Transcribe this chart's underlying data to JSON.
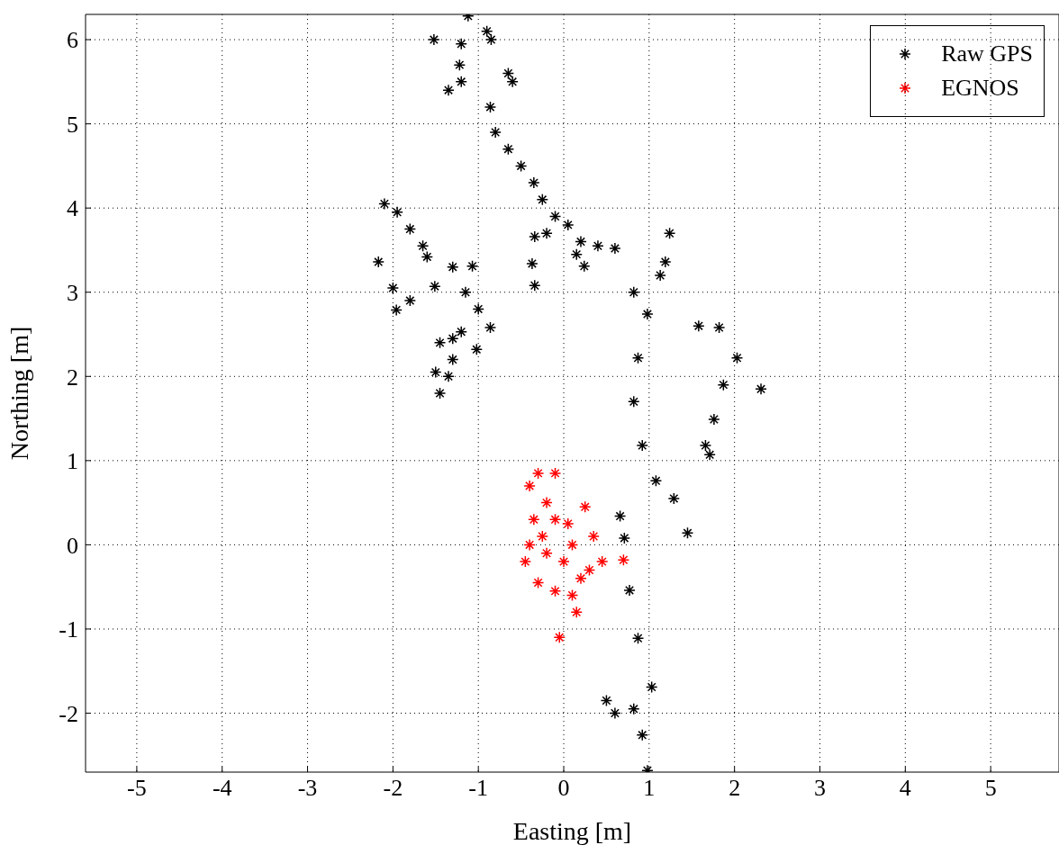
{
  "chart_data": {
    "type": "scatter",
    "xlabel": "Easting [m]",
    "ylabel": "Northing [m]",
    "xlim": [
      -5.6,
      5.8
    ],
    "ylim": [
      -2.7,
      6.3
    ],
    "xticks": [
      -5,
      -4,
      -3,
      -2,
      -1,
      0,
      1,
      2,
      3,
      4,
      5
    ],
    "yticks": [
      -2,
      -1,
      0,
      1,
      2,
      3,
      4,
      5,
      6
    ],
    "grid": true,
    "legend": "top right",
    "marker": "cross",
    "series": [
      {
        "name": "Raw GPS",
        "color": "#000000",
        "x": [
          -1.52,
          -1.12,
          -1.2,
          -1.22,
          -1.2,
          -1.35,
          -0.9,
          -0.85,
          -0.65,
          -0.6,
          -0.86,
          -0.8,
          -0.65,
          -0.5,
          -0.35,
          -0.25,
          -0.1,
          0.05,
          -0.34,
          -0.2,
          0.2,
          0.4,
          0.6,
          0.24,
          0.15,
          -2.1,
          -1.95,
          -1.8,
          -1.65,
          -1.6,
          -2.17,
          -2.0,
          -1.96,
          -1.8,
          -1.51,
          -1.3,
          -1.15,
          -1.0,
          -0.86,
          -1.07,
          -0.34,
          -0.37,
          -1.2,
          -1.02,
          -1.45,
          -1.3,
          -1.5,
          -1.35,
          -1.45,
          -1.3,
          1.24,
          1.19,
          1.13,
          0.82,
          0.98,
          0.87,
          0.82,
          0.92,
          1.08,
          1.29,
          1.45,
          0.66,
          0.71,
          0.77,
          0.87,
          1.03,
          0.82,
          0.92,
          0.98,
          0.5,
          0.6,
          1.58,
          1.82,
          2.03,
          2.31,
          1.87,
          1.76,
          1.66,
          1.71
        ],
        "values": [
          6.0,
          6.28,
          5.95,
          5.7,
          5.5,
          5.4,
          6.1,
          6.0,
          5.6,
          5.5,
          5.2,
          4.9,
          4.7,
          4.5,
          4.3,
          4.1,
          3.9,
          3.8,
          3.66,
          3.7,
          3.6,
          3.55,
          3.52,
          3.31,
          3.45,
          4.05,
          3.95,
          3.75,
          3.55,
          3.42,
          3.36,
          3.05,
          2.79,
          2.9,
          3.07,
          3.3,
          3.0,
          2.8,
          2.58,
          3.31,
          3.08,
          3.34,
          2.53,
          2.32,
          2.4,
          2.45,
          2.05,
          2.0,
          1.8,
          2.2,
          3.7,
          3.36,
          3.2,
          3.0,
          2.74,
          2.22,
          1.7,
          1.18,
          0.76,
          0.55,
          0.14,
          0.34,
          0.08,
          -0.54,
          -1.11,
          -1.69,
          -1.95,
          -2.26,
          -2.68,
          -1.85,
          -2.0,
          2.6,
          2.58,
          2.22,
          1.85,
          1.9,
          1.49,
          1.18,
          1.07
        ]
      },
      {
        "name": "EGNOS",
        "color": "#ff0000",
        "x": [
          -0.4,
          -0.3,
          -0.1,
          -0.2,
          -0.35,
          -0.1,
          -0.4,
          -0.45,
          -0.3,
          -0.1,
          0.1,
          0.15,
          0.3,
          0.45,
          0.7,
          0.35,
          0.25,
          0.1,
          0,
          -0.2,
          0.05,
          -0.05,
          0.2,
          -0.25
        ],
        "values": [
          0.7,
          0.85,
          0.85,
          0.5,
          0.3,
          0.3,
          0,
          -0.2,
          -0.45,
          -0.55,
          -0.6,
          -0.8,
          -0.3,
          -0.2,
          -0.18,
          0.1,
          0.45,
          0,
          -0.2,
          -0.1,
          0.25,
          -1.1,
          -0.4,
          0.1
        ]
      }
    ]
  }
}
